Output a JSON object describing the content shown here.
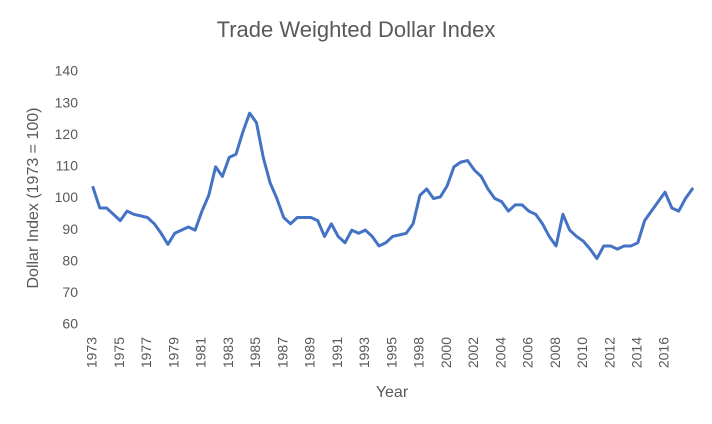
{
  "chart_data": {
    "type": "line",
    "title": "Trade Weighted Dollar Index",
    "x_label": "Year",
    "y_label": "Dollar Index (1973 = 100)",
    "categories": [
      "1973",
      null,
      null,
      null,
      "1975",
      null,
      null,
      null,
      "1977",
      null,
      null,
      null,
      "1979",
      null,
      null,
      null,
      "1981",
      null,
      null,
      null,
      "1983",
      null,
      null,
      null,
      "1985",
      null,
      null,
      null,
      "1987",
      null,
      null,
      null,
      "1989",
      null,
      null,
      null,
      "1991",
      null,
      null,
      null,
      "1993",
      null,
      null,
      null,
      "1995",
      null,
      null,
      null,
      "1998",
      null,
      null,
      null,
      "2000",
      null,
      null,
      null,
      "2002",
      null,
      null,
      null,
      "2004",
      null,
      null,
      null,
      "2006",
      null,
      null,
      null,
      "2008",
      null,
      null,
      null,
      "2010",
      null,
      null,
      null,
      "2012",
      null,
      null,
      null,
      "2014",
      null,
      null,
      null,
      "2016",
      null,
      null,
      null,
      null
    ],
    "series": [
      {
        "name": "Dollar Index",
        "color": "#4472c4",
        "values": [
          103.5,
          97,
          97,
          95,
          93,
          96,
          95,
          94.5,
          94,
          92,
          89,
          85.5,
          89,
          90,
          91,
          90,
          96,
          101,
          110,
          107,
          113,
          114,
          121,
          127,
          124,
          113,
          105,
          100,
          94,
          92,
          94,
          94,
          94,
          93,
          88,
          92,
          88,
          86,
          90,
          89,
          90,
          88,
          85,
          86,
          88,
          88.5,
          89,
          92,
          101,
          103,
          100,
          100.5,
          104,
          110,
          111.5,
          112,
          109,
          107,
          103,
          100,
          99,
          96,
          98,
          98,
          96,
          95,
          92,
          88,
          85,
          95,
          90,
          88,
          86.5,
          84,
          81,
          85,
          85,
          84,
          85,
          85,
          86,
          93,
          96,
          99,
          102,
          97,
          96,
          100,
          103
        ]
      }
    ],
    "ylim": [
      60,
      140
    ],
    "yticks": [
      60,
      70,
      80,
      90,
      100,
      110,
      120,
      130,
      140
    ],
    "grid": false
  }
}
